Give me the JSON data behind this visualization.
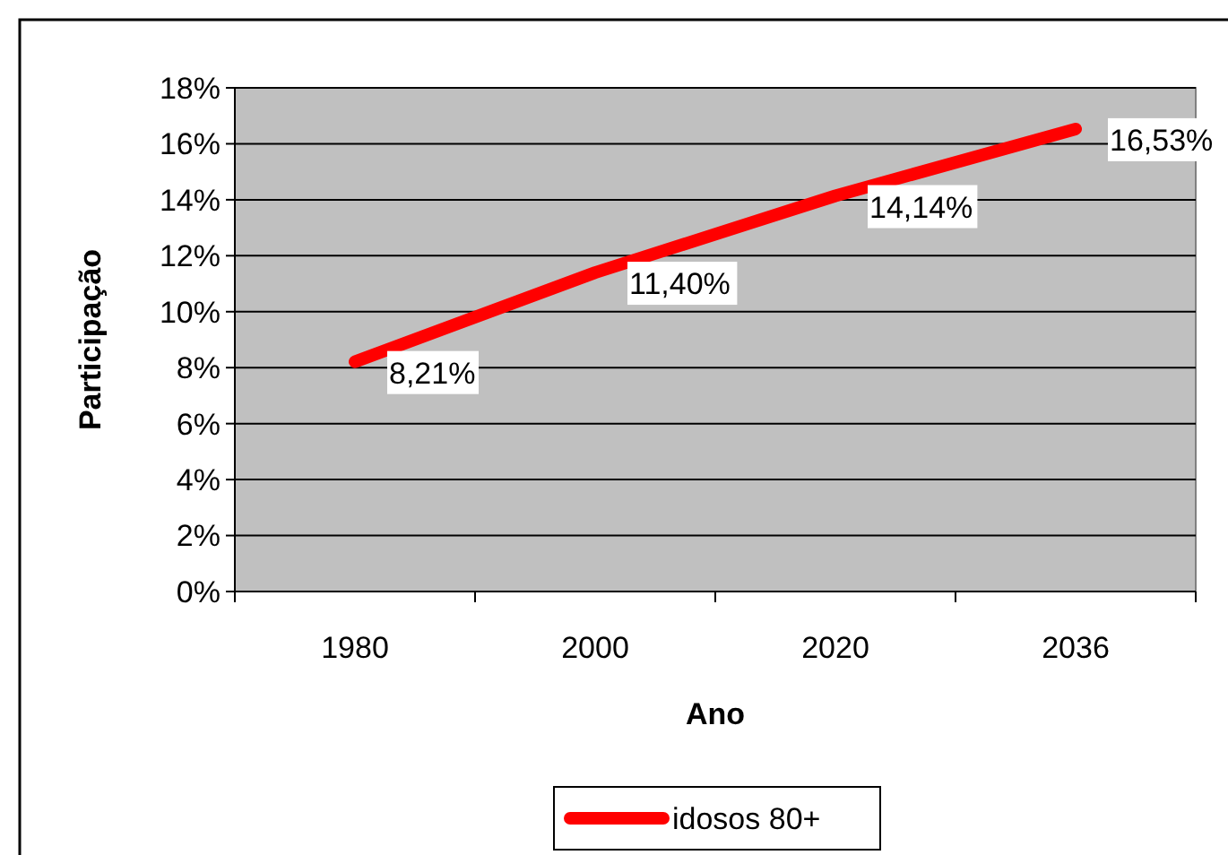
{
  "chart_data": {
    "type": "line",
    "xlabel": "Ano",
    "ylabel": "Participação",
    "categories": [
      "1980",
      "2000",
      "2020",
      "2036"
    ],
    "series": [
      {
        "name": "idosos 80+",
        "color": "#ff0000",
        "values": [
          8.21,
          11.4,
          14.14,
          16.53
        ],
        "value_labels": [
          "8,21%",
          "11,40%",
          "14,14%",
          "16,53%"
        ]
      }
    ],
    "ylim": [
      0,
      18
    ],
    "yticks": [
      {
        "value": 0,
        "label": "0%"
      },
      {
        "value": 2,
        "label": "2%"
      },
      {
        "value": 4,
        "label": "4%"
      },
      {
        "value": 6,
        "label": "6%"
      },
      {
        "value": 8,
        "label": "8%"
      },
      {
        "value": 10,
        "label": "10%"
      },
      {
        "value": 12,
        "label": "12%"
      },
      {
        "value": 14,
        "label": "14%"
      },
      {
        "value": 16,
        "label": "16%"
      },
      {
        "value": 18,
        "label": "18%"
      }
    ],
    "grid": "y",
    "legend": "bottom",
    "marker": "none",
    "line_style": "solid"
  }
}
